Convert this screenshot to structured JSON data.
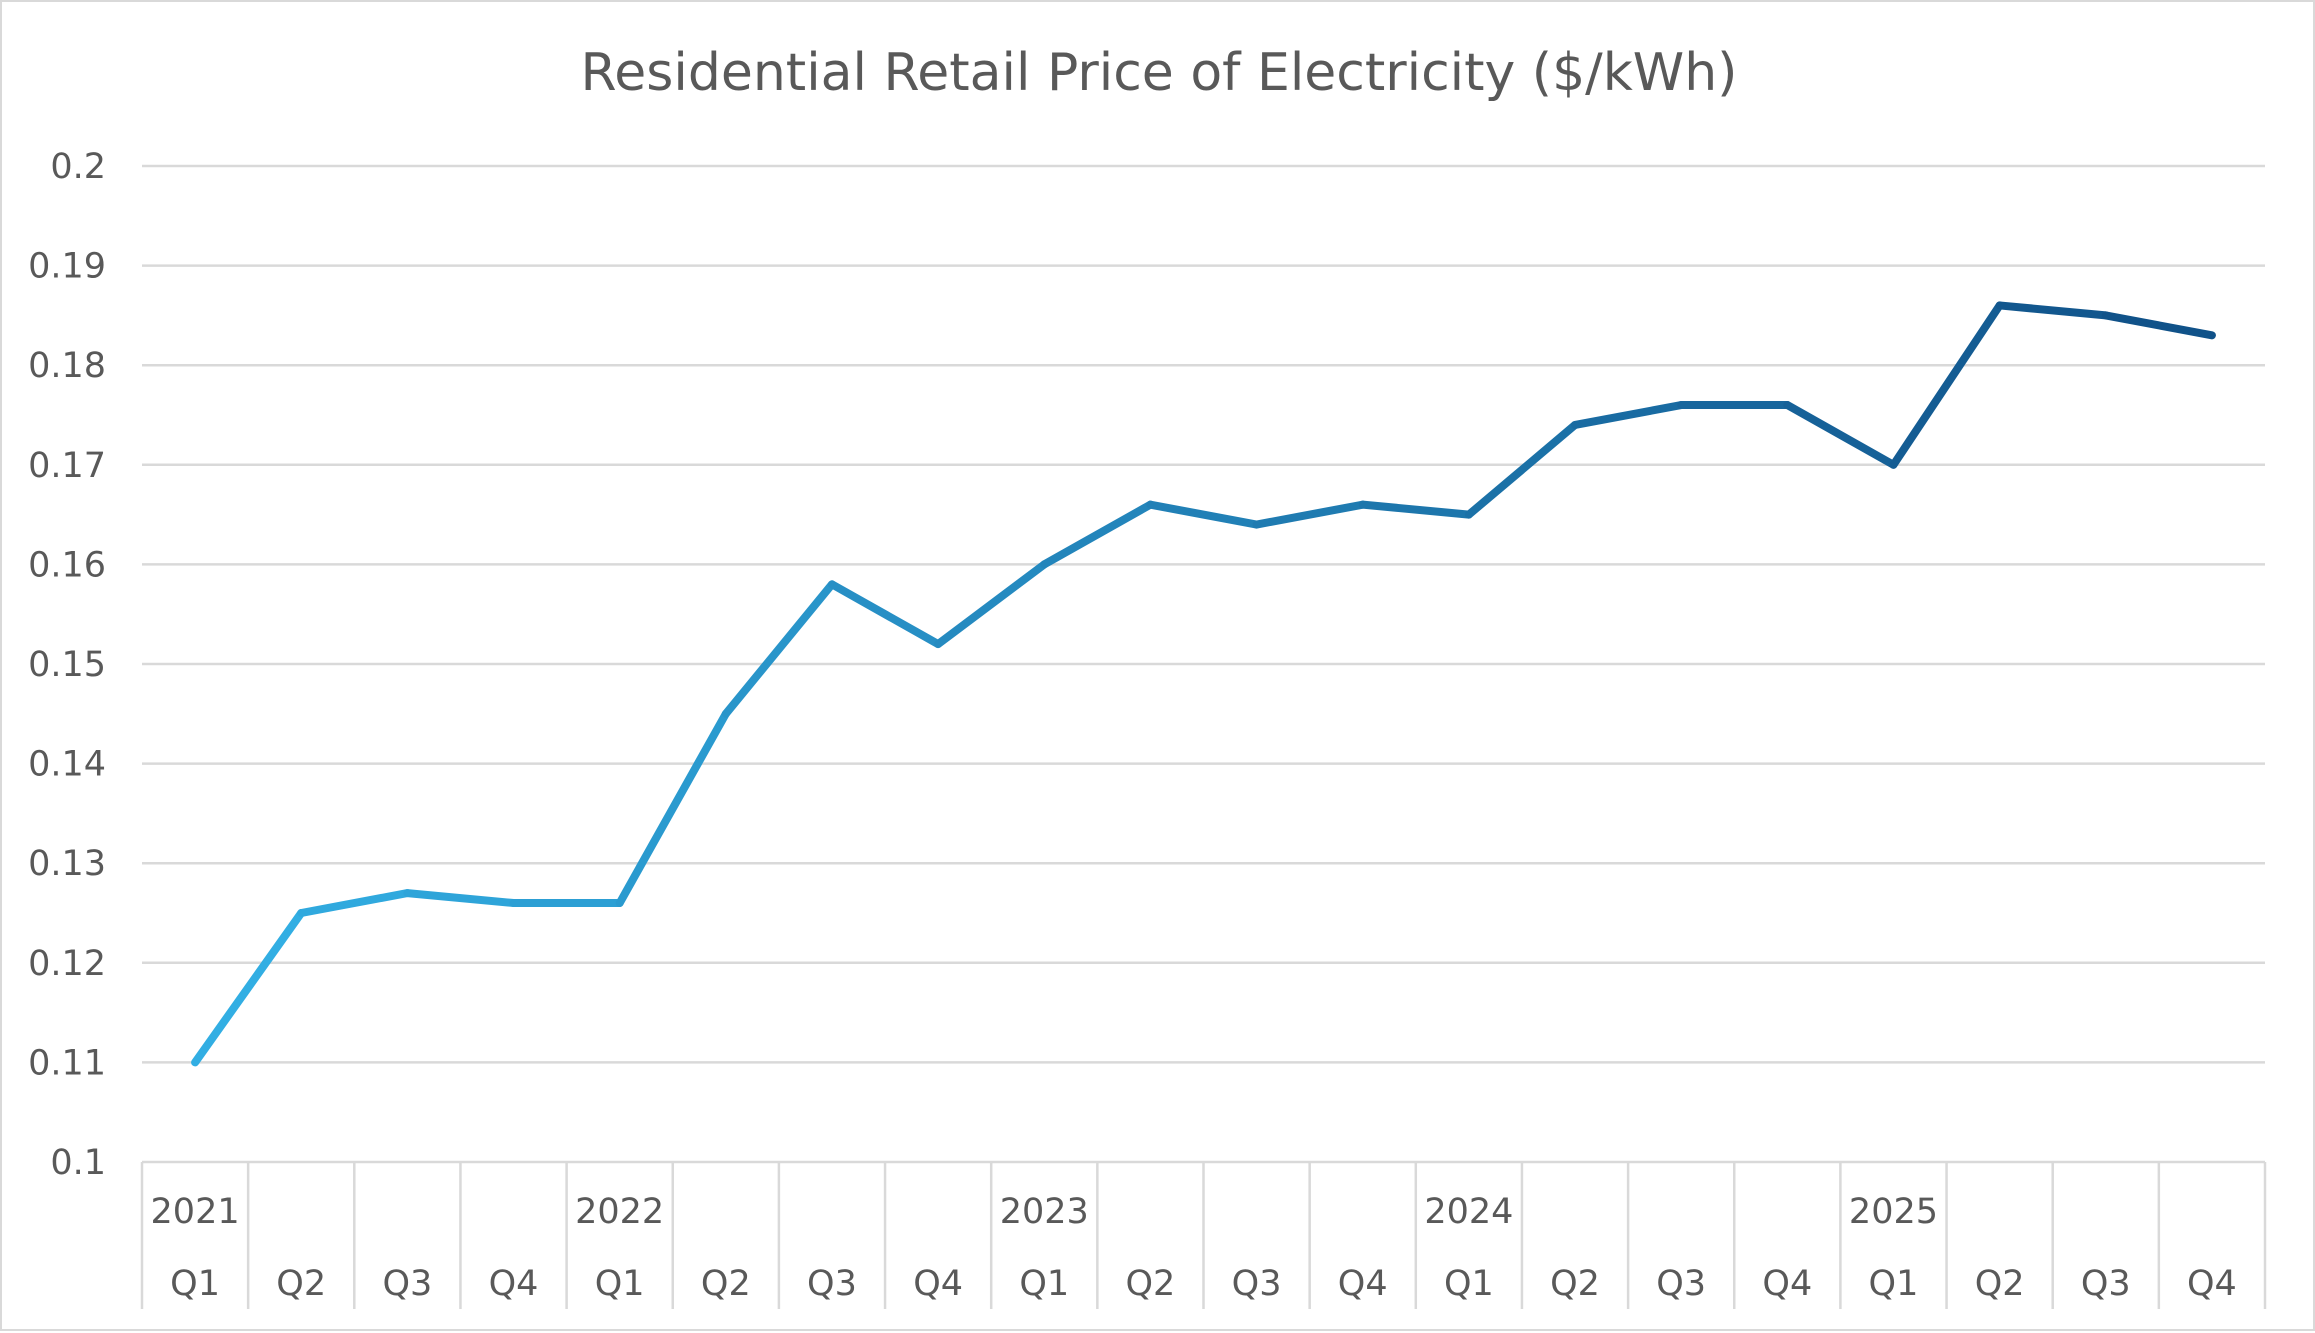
{
  "chart_data": {
    "type": "line",
    "title": "Residential Retail Price of Electricity ($/kWh)",
    "xlabel": "",
    "ylabel": "",
    "ylim": [
      0.1,
      0.2
    ],
    "yticks": [
      "0.1",
      "0.11",
      "0.12",
      "0.13",
      "0.14",
      "0.15",
      "0.16",
      "0.17",
      "0.18",
      "0.19",
      "0.2"
    ],
    "ytick_values": [
      0.1,
      0.11,
      0.12,
      0.13,
      0.14,
      0.15,
      0.16,
      0.17,
      0.18,
      0.19,
      0.2
    ],
    "grid": true,
    "legend": "none",
    "categories": [
      {
        "year": "2021",
        "quarter": "Q1"
      },
      {
        "year": "",
        "quarter": "Q2"
      },
      {
        "year": "",
        "quarter": "Q3"
      },
      {
        "year": "",
        "quarter": "Q4"
      },
      {
        "year": "2022",
        "quarter": "Q1"
      },
      {
        "year": "",
        "quarter": "Q2"
      },
      {
        "year": "",
        "quarter": "Q3"
      },
      {
        "year": "",
        "quarter": "Q4"
      },
      {
        "year": "2023",
        "quarter": "Q1"
      },
      {
        "year": "",
        "quarter": "Q2"
      },
      {
        "year": "",
        "quarter": "Q3"
      },
      {
        "year": "",
        "quarter": "Q4"
      },
      {
        "year": "2024",
        "quarter": "Q1"
      },
      {
        "year": "",
        "quarter": "Q2"
      },
      {
        "year": "",
        "quarter": "Q3"
      },
      {
        "year": "",
        "quarter": "Q4"
      },
      {
        "year": "2025",
        "quarter": "Q1"
      },
      {
        "year": "",
        "quarter": "Q2"
      },
      {
        "year": "",
        "quarter": "Q3"
      },
      {
        "year": "",
        "quarter": "Q4"
      }
    ],
    "series": [
      {
        "name": "Residential Retail Price of Electricity ($/kWh)",
        "values": [
          0.11,
          0.125,
          0.127,
          0.126,
          0.126,
          0.145,
          0.158,
          0.152,
          0.16,
          0.166,
          0.164,
          0.166,
          0.165,
          0.174,
          0.176,
          0.176,
          0.17,
          0.186,
          0.185,
          0.183
        ],
        "color_start": "#33b1e6",
        "color_end": "#0f4f86"
      }
    ]
  }
}
